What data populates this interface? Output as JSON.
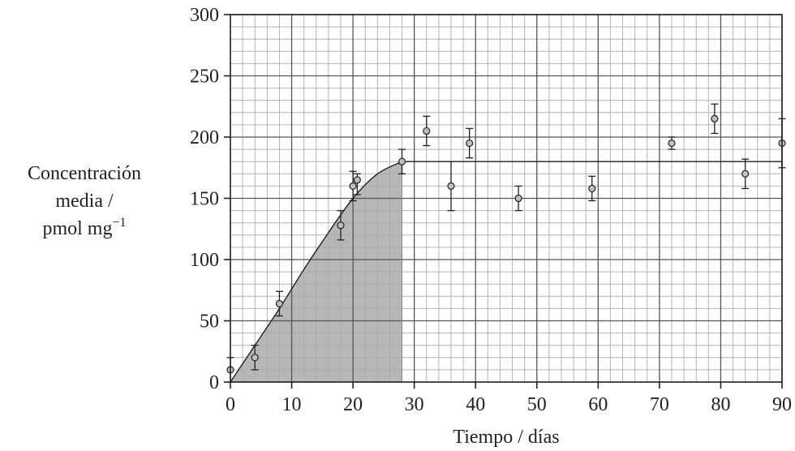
{
  "chart_data": {
    "type": "scatter",
    "title": "",
    "xlabel": "Tiempo / días",
    "ylabel": {
      "line1": "Concentración",
      "line2": "media /",
      "line3": "pmol mg",
      "line3_sup": "−1"
    },
    "xlim": [
      0,
      90
    ],
    "ylim": [
      0,
      300
    ],
    "x_ticks": [
      "0",
      "10",
      "20",
      "30",
      "40",
      "50",
      "60",
      "70",
      "80",
      "90"
    ],
    "y_ticks": [
      "0",
      "50",
      "100",
      "150",
      "200",
      "250",
      "300"
    ],
    "grid": true,
    "points": [
      {
        "x": 0,
        "y": 10,
        "err_low": 0,
        "err_high": 20
      },
      {
        "x": 4,
        "y": 20,
        "err_low": 10,
        "err_high": 30
      },
      {
        "x": 8,
        "y": 64,
        "err_low": 54,
        "err_high": 74
      },
      {
        "x": 18,
        "y": 128,
        "err_low": 116,
        "err_high": 140
      },
      {
        "x": 20,
        "y": 160,
        "err_low": 148,
        "err_high": 172
      },
      {
        "x": 20.7,
        "y": 165,
        "err_low": 153,
        "err_high": 170
      },
      {
        "x": 28,
        "y": 180,
        "err_low": 170,
        "err_high": 190
      },
      {
        "x": 32,
        "y": 205,
        "err_low": 193,
        "err_high": 217
      },
      {
        "x": 36,
        "y": 160,
        "err_low": 140,
        "err_high": 180
      },
      {
        "x": 39,
        "y": 195,
        "err_low": 183,
        "err_high": 207
      },
      {
        "x": 47,
        "y": 150,
        "err_low": 140,
        "err_high": 160
      },
      {
        "x": 59,
        "y": 158,
        "err_low": 148,
        "err_high": 168
      },
      {
        "x": 72,
        "y": 195,
        "err_low": 190,
        "err_high": 200
      },
      {
        "x": 79,
        "y": 215,
        "err_low": 203,
        "err_high": 227
      },
      {
        "x": 84,
        "y": 170,
        "err_low": 158,
        "err_high": 182
      },
      {
        "x": 90,
        "y": 195,
        "err_low": 175,
        "err_high": 215
      }
    ],
    "fit_curve": {
      "rising": [
        [
          0,
          0
        ],
        [
          4,
          30
        ],
        [
          8,
          60
        ],
        [
          12,
          92
        ],
        [
          16,
          122
        ],
        [
          20,
          150
        ],
        [
          24,
          170
        ],
        [
          28,
          180
        ]
      ],
      "plateau": {
        "y": 180,
        "x_from": 28,
        "x_to": 90
      }
    },
    "shaded_region": {
      "x_from": 0,
      "x_to": 28
    },
    "colors": {
      "grid_minor": "#b4b4b4",
      "grid_major": "#555555",
      "axis": "#231f20",
      "shade": "#a7a7a7",
      "marker_fill": "#bfbfbf",
      "curve": "#231f20"
    }
  }
}
